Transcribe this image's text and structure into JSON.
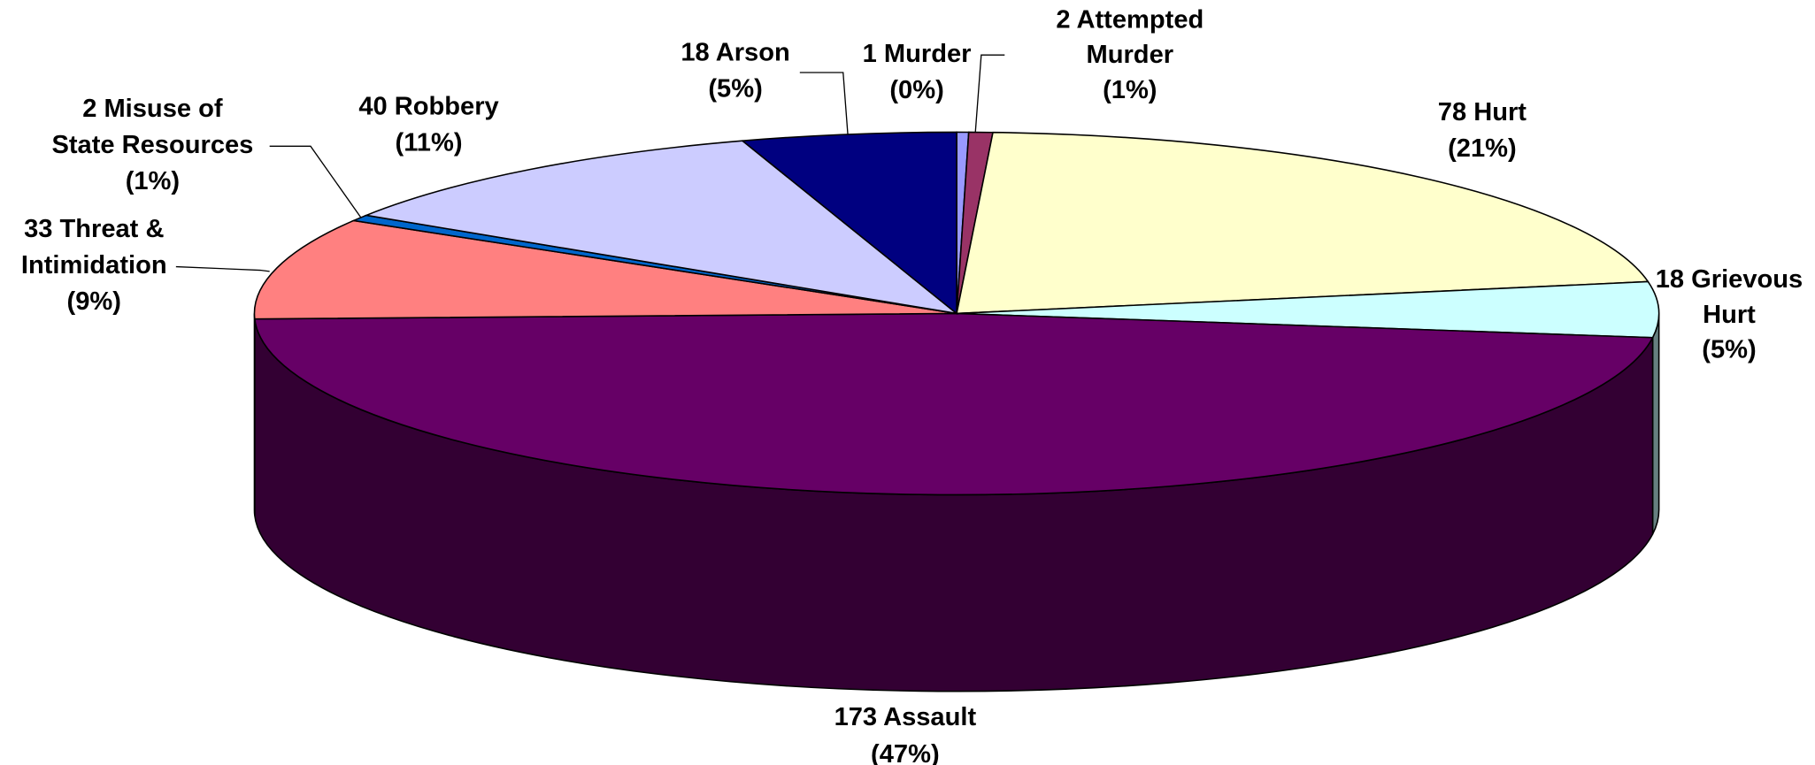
{
  "chart_data": {
    "type": "pie3d",
    "labels": [
      [
        "1 Murder",
        "(0%)"
      ],
      [
        "2 Attempted",
        "Murder",
        "(1%)"
      ],
      [
        "78 Hurt",
        "(21%)"
      ],
      [
        "18 Grievous",
        "Hurt",
        "(5%)"
      ],
      [
        "173 Assault",
        "(47%)"
      ],
      [
        "33 Threat &",
        "Intimidation",
        "(9%)"
      ],
      [
        "2 Misuse of",
        "State Resources",
        "(1%)"
      ],
      [
        "40 Robbery",
        "(11%)"
      ],
      [
        "18 Arson",
        "(5%)"
      ]
    ],
    "values": [
      1,
      2,
      78,
      18,
      173,
      33,
      2,
      40,
      18
    ],
    "colors": [
      "#9999ff",
      "#993366",
      "#ffffcc",
      "#ccffff",
      "#660066",
      "#ff8080",
      "#0066cc",
      "#ccccff",
      "#000080"
    ]
  }
}
